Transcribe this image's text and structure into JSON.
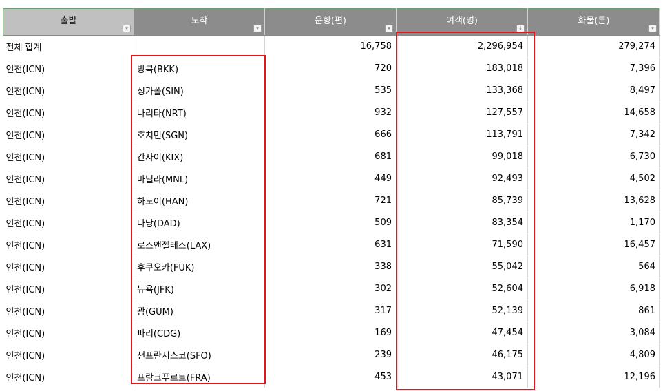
{
  "columns": [
    {
      "label": "출발"
    },
    {
      "label": "도착"
    },
    {
      "label": "운항(편)"
    },
    {
      "label": "여객(명)"
    },
    {
      "label": "화물(톤)"
    }
  ],
  "filter_icons": {
    "default": "filter-dropdown-icon",
    "sorted": "filter-sorted-icon",
    "default_glyph": "▾",
    "sorted_glyph": "↓"
  },
  "total_row": {
    "origin": "전체 합계",
    "destination": "",
    "flights": "16,758",
    "passengers": "2,296,954",
    "cargo": "279,274"
  },
  "rows": [
    {
      "origin": "인천(ICN)",
      "destination": "방콕(BKK)",
      "flights": "720",
      "passengers": "183,018",
      "cargo": "7,396"
    },
    {
      "origin": "인천(ICN)",
      "destination": "싱가폴(SIN)",
      "flights": "535",
      "passengers": "133,368",
      "cargo": "8,497"
    },
    {
      "origin": "인천(ICN)",
      "destination": "나리타(NRT)",
      "flights": "932",
      "passengers": "127,557",
      "cargo": "14,658"
    },
    {
      "origin": "인천(ICN)",
      "destination": "호치민(SGN)",
      "flights": "666",
      "passengers": "113,791",
      "cargo": "7,342"
    },
    {
      "origin": "인천(ICN)",
      "destination": "간사이(KIX)",
      "flights": "681",
      "passengers": "99,018",
      "cargo": "6,730"
    },
    {
      "origin": "인천(ICN)",
      "destination": "마닐라(MNL)",
      "flights": "449",
      "passengers": "92,493",
      "cargo": "4,502"
    },
    {
      "origin": "인천(ICN)",
      "destination": "하노이(HAN)",
      "flights": "721",
      "passengers": "85,739",
      "cargo": "13,628"
    },
    {
      "origin": "인천(ICN)",
      "destination": "다낭(DAD)",
      "flights": "509",
      "passengers": "83,354",
      "cargo": "1,170"
    },
    {
      "origin": "인천(ICN)",
      "destination": "로스앤젤레스(LAX)",
      "flights": "631",
      "passengers": "71,590",
      "cargo": "16,457"
    },
    {
      "origin": "인천(ICN)",
      "destination": "후쿠오카(FUK)",
      "flights": "338",
      "passengers": "55,042",
      "cargo": "564"
    },
    {
      "origin": "인천(ICN)",
      "destination": "뉴욕(JFK)",
      "flights": "302",
      "passengers": "52,604",
      "cargo": "6,918"
    },
    {
      "origin": "인천(ICN)",
      "destination": "괌(GUM)",
      "flights": "317",
      "passengers": "52,139",
      "cargo": "861"
    },
    {
      "origin": "인천(ICN)",
      "destination": "파리(CDG)",
      "flights": "169",
      "passengers": "47,454",
      "cargo": "3,084"
    },
    {
      "origin": "인천(ICN)",
      "destination": "샌프란시스코(SFO)",
      "flights": "239",
      "passengers": "46,175",
      "cargo": "4,809"
    },
    {
      "origin": "인천(ICN)",
      "destination": "프랑크푸르트(FRA)",
      "flights": "453",
      "passengers": "43,071",
      "cargo": "12,196"
    }
  ],
  "colors": {
    "header_bg": "#8c8c8c",
    "header_first_bg": "#c0c0c0",
    "highlight_border": "#e8141d"
  }
}
